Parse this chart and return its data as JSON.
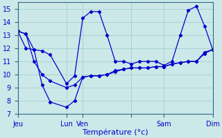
{
  "background_color": "#cce8e8",
  "grid_color": "#99cccc",
  "line_color": "#0000cc",
  "xlabel": "Température (°c)",
  "xlim": [
    0,
    96
  ],
  "ylim": [
    7,
    15.5
  ],
  "yticks": [
    7,
    8,
    9,
    10,
    11,
    12,
    13,
    14,
    15
  ],
  "xtick_positions": [
    0,
    24,
    32,
    56,
    72,
    96
  ],
  "xtick_labels": [
    "Jeu",
    "Lun",
    "Ven",
    "",
    "Sam",
    "Dim"
  ],
  "x_positions": [
    0,
    4,
    8,
    12,
    16,
    24,
    28,
    32,
    36,
    40,
    44,
    48,
    52,
    56,
    60,
    64,
    68,
    72,
    76,
    80,
    84,
    88,
    92,
    96
  ],
  "y_max": [
    13.3,
    12.0,
    11.9,
    11.8,
    11.5,
    9.3,
    9.9,
    14.3,
    14.8,
    14.8,
    13.0,
    11.0,
    11.0,
    10.8,
    11.0,
    11.0,
    11.0,
    10.7,
    11.0,
    13.0,
    14.9,
    15.2,
    13.7,
    11.9
  ],
  "y_min": [
    13.3,
    13.1,
    11.9,
    9.2,
    7.9,
    7.5,
    8.0,
    9.8,
    9.9,
    9.9,
    10.0,
    10.2,
    10.4,
    10.5,
    10.5,
    10.5,
    10.6,
    10.6,
    10.8,
    10.9,
    11.0,
    11.0,
    11.7,
    11.9
  ],
  "y_avg": [
    13.3,
    13.1,
    11.0,
    10.0,
    9.5,
    9.0,
    9.2,
    9.8,
    9.9,
    9.9,
    10.0,
    10.3,
    10.4,
    10.5,
    10.5,
    10.5,
    10.6,
    10.6,
    10.8,
    10.9,
    11.0,
    11.0,
    11.6,
    11.9
  ]
}
